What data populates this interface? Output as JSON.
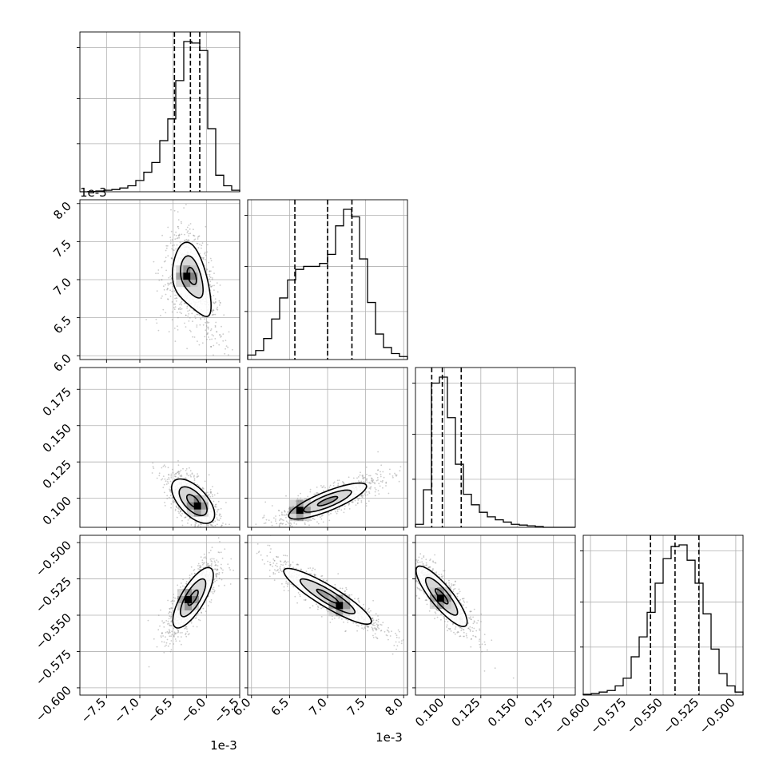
{
  "chart_data": {
    "type": "corner",
    "grid": true,
    "parameters": [
      {
        "range": [
          -7.9,
          -5.5
        ],
        "multiplier": "1e-3",
        "ticks": [
          -7.5,
          -7.0,
          -6.5,
          -6.0,
          -5.5
        ],
        "tick_labels": [
          "−7.5",
          "−7.0",
          "−6.5",
          "−6.0",
          "−5.5"
        ],
        "quantiles": [
          -6.48,
          -6.24,
          -6.1
        ],
        "hist": {
          "bins": [
            -7.9,
            -7.78,
            -7.66,
            -7.54,
            -7.42,
            -7.3,
            -7.18,
            -7.06,
            -6.94,
            -6.82,
            -6.7,
            -6.58,
            -6.46,
            -6.34,
            -6.22,
            -6.1,
            -5.98,
            -5.86,
            -5.74,
            -5.62,
            -5.5
          ],
          "counts": [
            0,
            0.2,
            0.5,
            1,
            1.5,
            2.5,
            4,
            7.5,
            13,
            19.5,
            34,
            48.5,
            74,
            100,
            99,
            94,
            42,
            11,
            4,
            1
          ]
        }
      },
      {
        "range": [
          5.95,
          8.05
        ],
        "multiplier": "1e-3",
        "ticks": [
          6.0,
          6.5,
          7.0,
          7.5,
          8.0
        ],
        "tick_labels": [
          "6.0",
          "6.5",
          "7.0",
          "7.5",
          "8.0"
        ],
        "quantiles": [
          6.57,
          7.0,
          7.32
        ],
        "hist": {
          "bins": [
            5.95,
            6.055,
            6.16,
            6.265,
            6.37,
            6.475,
            6.58,
            6.685,
            6.79,
            6.895,
            7.0,
            7.105,
            7.21,
            7.315,
            7.42,
            7.525,
            7.63,
            7.735,
            7.84,
            7.945,
            8.05
          ],
          "counts": [
            3,
            6,
            14,
            27,
            41,
            53,
            60,
            62,
            62,
            64,
            70,
            89,
            100,
            95,
            67,
            38,
            17,
            8,
            4,
            2
          ]
        }
      },
      {
        "range": [
          0.08,
          0.19
        ],
        "multiplier": "",
        "ticks": [
          0.1,
          0.125,
          0.15,
          0.175
        ],
        "tick_labels": [
          "0.100",
          "0.125",
          "0.150",
          "0.175"
        ],
        "quantiles": [
          0.0912,
          0.0985,
          0.1115
        ],
        "hist": {
          "bins": [
            0.08,
            0.0855,
            0.091,
            0.0965,
            0.102,
            0.1075,
            0.113,
            0.1185,
            0.124,
            0.1295,
            0.135,
            0.1405,
            0.146,
            0.1515,
            0.157,
            0.1625,
            0.168,
            0.1735,
            0.179,
            0.1845,
            0.19
          ],
          "counts": [
            2,
            25,
            96,
            100,
            73,
            42,
            22,
            15,
            10,
            7,
            5,
            3.5,
            2,
            1.5,
            1,
            0.5,
            0,
            0,
            0,
            0
          ]
        }
      },
      {
        "range": [
          -0.605,
          -0.495
        ],
        "multiplier": "",
        "ticks": [
          -0.6,
          -0.575,
          -0.55,
          -0.525,
          -0.5
        ],
        "tick_labels": [
          "−0.600",
          "−0.575",
          "−0.550",
          "−0.525",
          "−0.500"
        ],
        "quantiles": [
          -0.5587,
          -0.5418,
          -0.5254
        ],
        "hist": {
          "bins": [
            -0.605,
            -0.5995,
            -0.594,
            -0.5885,
            -0.583,
            -0.5775,
            -0.572,
            -0.5665,
            -0.561,
            -0.5555,
            -0.55,
            -0.5445,
            -0.539,
            -0.5335,
            -0.528,
            -0.5225,
            -0.517,
            -0.5115,
            -0.506,
            -0.5005,
            -0.495
          ],
          "counts": [
            0.5,
            1,
            2,
            3,
            6,
            11,
            25,
            38,
            54,
            73,
            89,
            97,
            98,
            88,
            73,
            53,
            30,
            14,
            6,
            2
          ]
        }
      }
    ],
    "pairs": [
      {
        "row": 1,
        "col": 0,
        "mean": [
          -6.22,
          7.05
        ],
        "sd": [
          0.2,
          0.32
        ],
        "corr": -0.45,
        "bend": -0.55,
        "peak": [
          -6.3,
          7.05
        ],
        "levels": [
          0.35,
          0.85,
          1.45
        ]
      },
      {
        "row": 2,
        "col": 0,
        "mean": [
          -6.2,
          0.098
        ],
        "sd": [
          0.19,
          0.009
        ],
        "corr": -0.6,
        "bend": 0,
        "peak": [
          -6.14,
          0.095
        ],
        "levels": [
          0.5,
          1.1,
          1.7
        ]
      },
      {
        "row": 2,
        "col": 1,
        "mean": [
          7.0,
          0.098
        ],
        "sd": [
          0.33,
          0.008
        ],
        "corr": 0.82,
        "bend": 0.012,
        "peak": [
          6.63,
          0.092
        ],
        "levels": [
          0.4,
          0.95,
          1.55
        ]
      },
      {
        "row": 3,
        "col": 0,
        "mean": [
          -6.2,
          -0.538
        ],
        "sd": [
          0.19,
          0.013
        ],
        "corr": 0.75,
        "bend": 0,
        "peak": [
          -6.28,
          -0.539
        ],
        "levels": [
          0.4,
          1.0,
          1.6
        ]
      },
      {
        "row": 3,
        "col": 1,
        "mean": [
          7.0,
          -0.537
        ],
        "sd": [
          0.36,
          0.012
        ],
        "corr": -0.9,
        "bend": 0,
        "peak": [
          7.15,
          -0.543
        ],
        "levels": [
          0.4,
          1.0,
          1.6
        ]
      },
      {
        "row": 3,
        "col": 2,
        "mean": [
          0.098,
          -0.537
        ],
        "sd": [
          0.011,
          0.013
        ],
        "corr": -0.85,
        "bend": 0,
        "peak": [
          0.097,
          -0.538
        ],
        "levels": [
          0.4,
          1.0,
          1.6
        ]
      }
    ]
  }
}
